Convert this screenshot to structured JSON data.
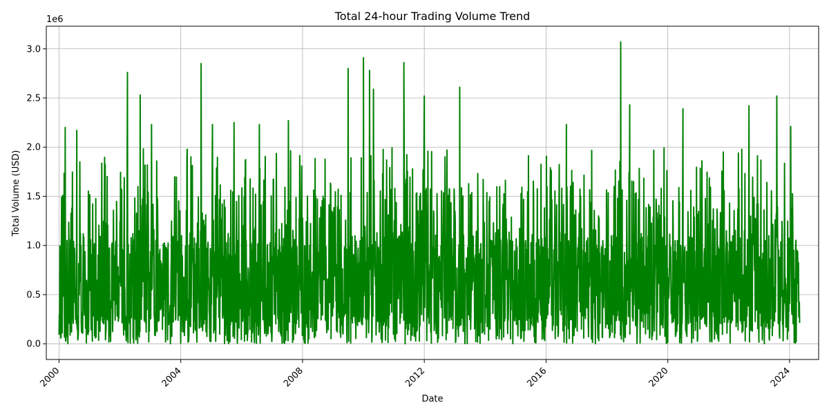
{
  "chart_data": {
    "type": "line",
    "title": "Total 24-hour Trading Volume Trend",
    "xlabel": "Date",
    "ylabel": "Total Volume (USD)",
    "y_offset_label": "1e6",
    "x_ticks": [
      "2000",
      "2004",
      "2008",
      "2012",
      "2016",
      "2020",
      "2024"
    ],
    "x_tick_values": [
      "2000-01-01",
      "2004-01-01",
      "2008-01-01",
      "2012-01-01",
      "2016-01-01",
      "2020-01-01",
      "2024-01-01"
    ],
    "xlim": [
      "1999-08-01",
      "2024-12-15"
    ],
    "y_ticks": [
      "0.0",
      "0.5",
      "1.0",
      "1.5",
      "2.0",
      "2.5",
      "3.0"
    ],
    "y_tick_values": [
      0,
      500000,
      1000000,
      1500000,
      2000000,
      2500000,
      3000000
    ],
    "ylim": [
      -160000,
      3230000
    ],
    "grid": true,
    "line_color": "#008000",
    "series": [
      {
        "x_start": "2000-01-01",
        "x_end": "2024-05-01",
        "values_approx": "dense daily series; typical range ~0 to ~1.6e6 with frequent spikes near 2.0e6–3.07e6",
        "notable_peaks": [
          {
            "x": "2000-03-15",
            "y": 2200000
          },
          {
            "x": "2000-08-01",
            "y": 2170000
          },
          {
            "x": "2002-04-01",
            "y": 2760000
          },
          {
            "x": "2002-09-01",
            "y": 2530000
          },
          {
            "x": "2003-01-15",
            "y": 2230000
          },
          {
            "x": "2004-09-01",
            "y": 2850000
          },
          {
            "x": "2005-01-15",
            "y": 2230000
          },
          {
            "x": "2005-10-01",
            "y": 2250000
          },
          {
            "x": "2006-08-01",
            "y": 2230000
          },
          {
            "x": "2007-07-15",
            "y": 2270000
          },
          {
            "x": "2009-07-01",
            "y": 2800000
          },
          {
            "x": "2010-01-01",
            "y": 2910000
          },
          {
            "x": "2010-03-15",
            "y": 2780000
          },
          {
            "x": "2010-05-01",
            "y": 2590000
          },
          {
            "x": "2011-05-01",
            "y": 2860000
          },
          {
            "x": "2012-01-01",
            "y": 2520000
          },
          {
            "x": "2013-03-01",
            "y": 2610000
          },
          {
            "x": "2016-09-01",
            "y": 2230000
          },
          {
            "x": "2018-06-15",
            "y": 3070000
          },
          {
            "x": "2018-10-01",
            "y": 2430000
          },
          {
            "x": "2020-07-01",
            "y": 2390000
          },
          {
            "x": "2022-09-01",
            "y": 2420000
          },
          {
            "x": "2023-08-01",
            "y": 2520000
          },
          {
            "x": "2024-01-15",
            "y": 2210000
          }
        ]
      }
    ]
  }
}
